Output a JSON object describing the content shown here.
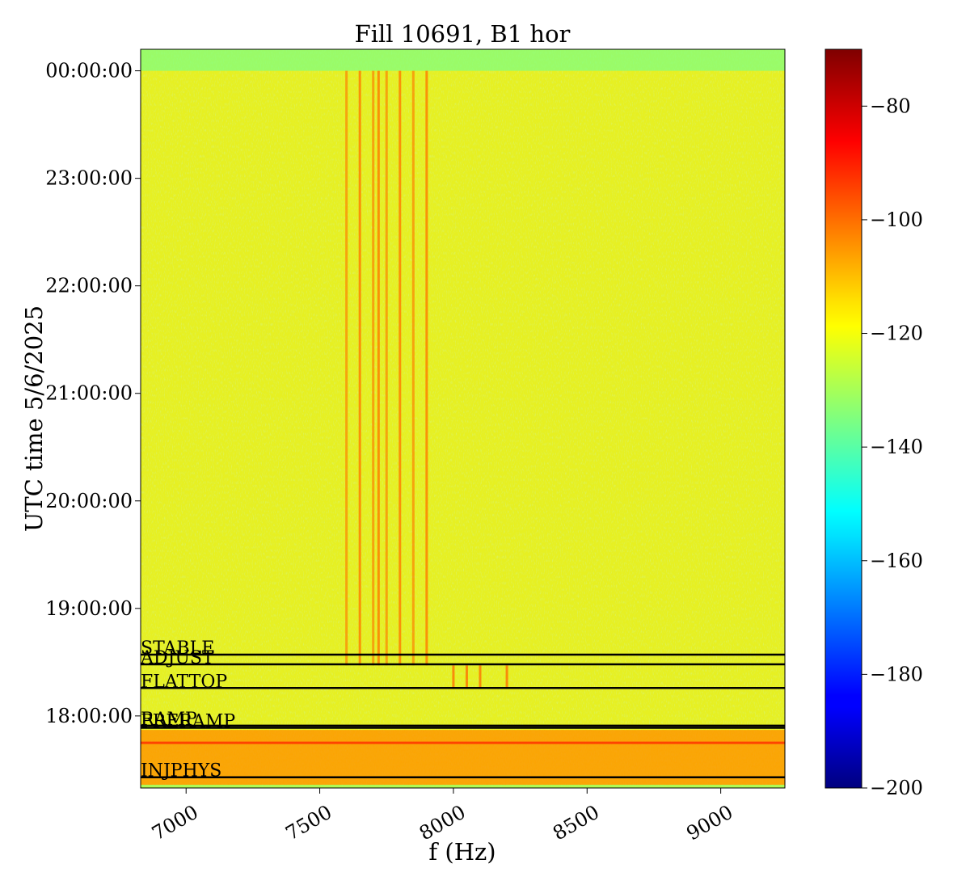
{
  "chart_data": {
    "type": "heatmap",
    "title": "Fill 10691, B1 hor",
    "xlabel": "f (Hz)",
    "ylabel": "UTC time 5/6/2025",
    "x_ticks": [
      7000,
      7500,
      8000,
      8500,
      9000
    ],
    "x_tick_labels": [
      "7000",
      "7500",
      "8000",
      "8500",
      "9000"
    ],
    "xlim": [
      6830,
      9240
    ],
    "y_ticks": [
      "18:00:00",
      "19:00:00",
      "20:00:00",
      "21:00:00",
      "22:00:00",
      "23:00:00",
      "00:00:00"
    ],
    "y_tick_hours": [
      18,
      19,
      20,
      21,
      22,
      23,
      24
    ],
    "ylim_hours": [
      17.33,
      24.2
    ],
    "colorbar": {
      "colormap": "jet",
      "range": [
        -200,
        -70
      ],
      "ticks": [
        -80,
        -100,
        -120,
        -140,
        -160,
        -180,
        -200
      ],
      "tick_labels": [
        "−80",
        "−100",
        "−120",
        "−140",
        "−160",
        "−180",
        "−200"
      ]
    },
    "background_level": -118,
    "noise_band_level": -105,
    "spectral_lines_hz": [
      7600,
      7650,
      7700,
      7720,
      7750,
      7800,
      7850,
      7900
    ],
    "spectral_lines_extent_hours": [
      18.47,
      24.0
    ],
    "flattop_lines_hz": [
      8000,
      8050,
      8100,
      8200
    ],
    "flattop_lines_extent_hours": [
      18.25,
      18.47
    ],
    "beam_modes": [
      {
        "label": "STABLE",
        "hour": 18.57
      },
      {
        "label": "ADJUST",
        "hour": 18.48
      },
      {
        "label": "FLATTOP",
        "hour": 18.26
      },
      {
        "label": "RAMP",
        "hour": 17.91
      },
      {
        "label": "PRERAMP",
        "hour": 17.89
      },
      {
        "label": "INJPHYS",
        "hour": 17.43
      }
    ]
  }
}
